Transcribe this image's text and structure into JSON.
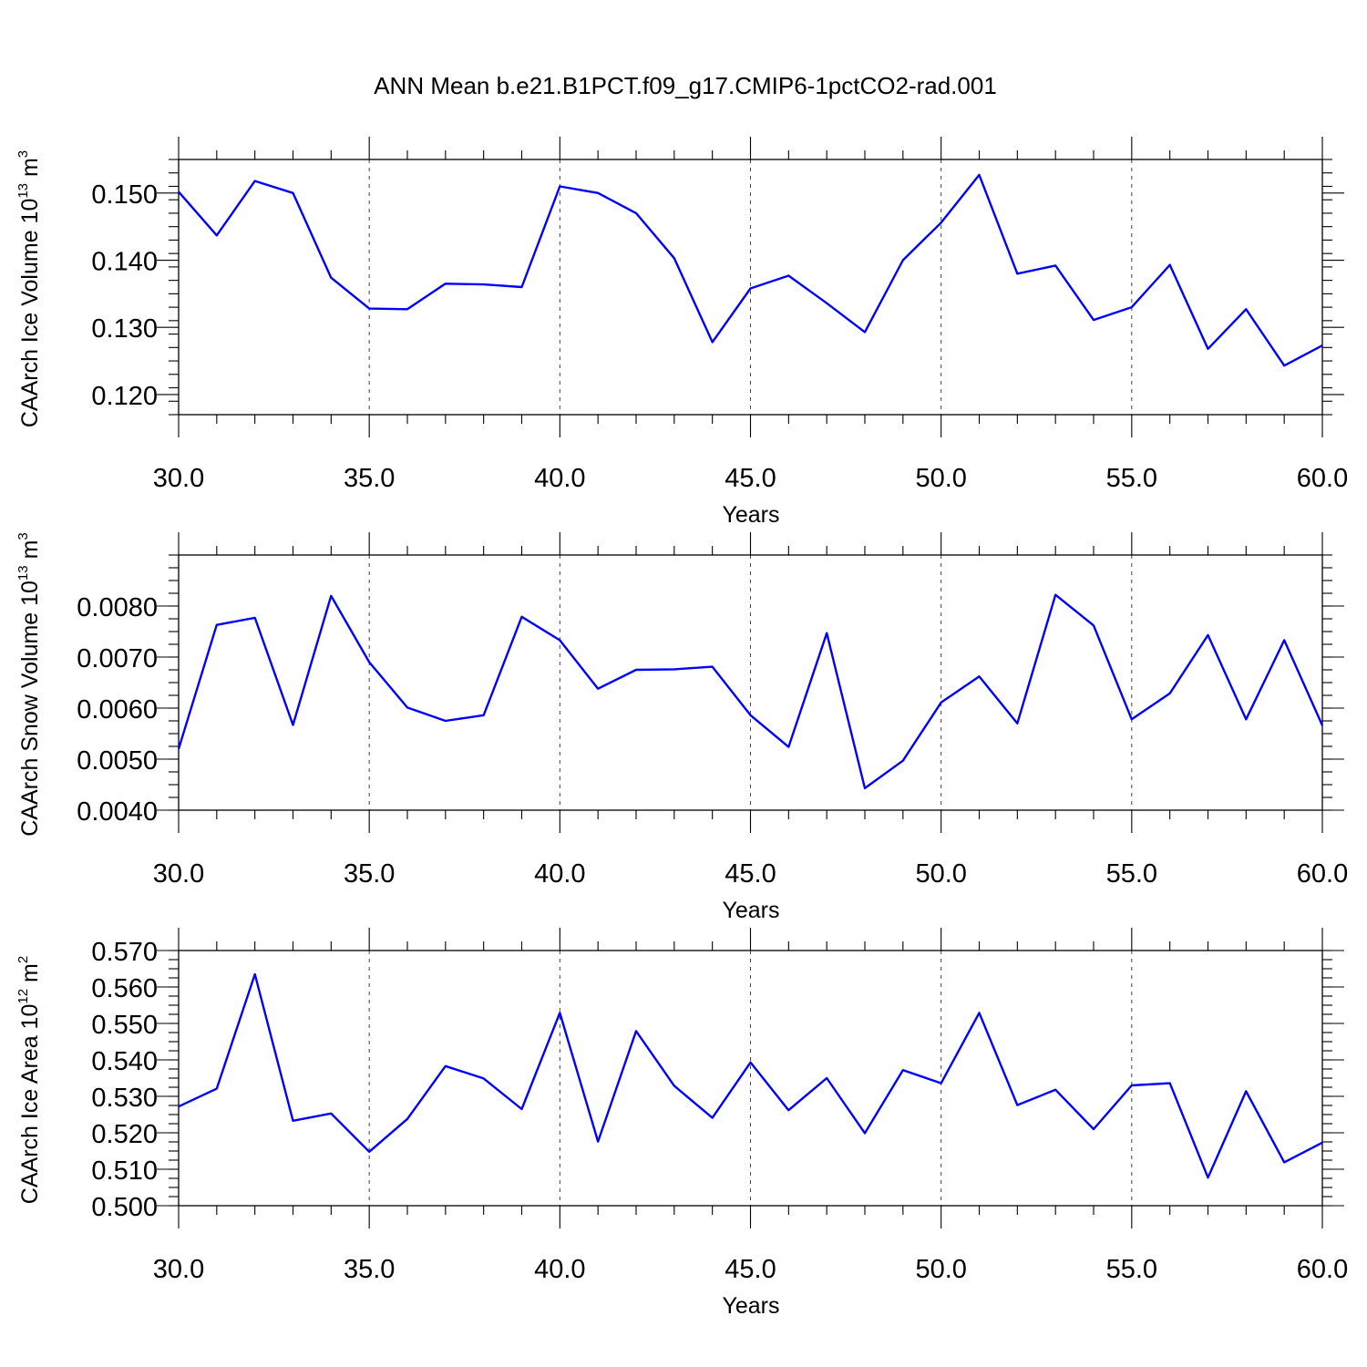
{
  "title": "ANN Mean b.e21.B1PCT.f09_g17.CMIP6-1pctCO2-rad.001",
  "colors": {
    "line": "#0000ff",
    "axis": "#000000",
    "grid": "#555555"
  },
  "chart_data": [
    {
      "type": "line",
      "xlabel": "Years",
      "ylabel": {
        "text": "CAArch Ice Volume 10",
        "exp": "13",
        "unit": " m",
        "unit_exp": "3"
      },
      "x": [
        30,
        31,
        32,
        33,
        34,
        35,
        36,
        37,
        38,
        39,
        40,
        41,
        42,
        43,
        44,
        45,
        46,
        47,
        48,
        49,
        50,
        51,
        52,
        53,
        54,
        55,
        56,
        57,
        58,
        59,
        60
      ],
      "values": [
        0.1502,
        0.1437,
        0.1518,
        0.15,
        0.1374,
        0.1328,
        0.1327,
        0.1365,
        0.1364,
        0.136,
        0.151,
        0.15,
        0.147,
        0.1403,
        0.1278,
        0.1358,
        0.1377,
        0.1336,
        0.1293,
        0.14,
        0.1456,
        0.1527,
        0.138,
        0.1392,
        0.1311,
        0.133,
        0.1393,
        0.1268,
        0.1327,
        0.1243,
        0.1273
      ],
      "xlim": [
        30,
        60
      ],
      "ylim": [
        0.117,
        0.155
      ],
      "xticks": [
        "30.0",
        "35.0",
        "40.0",
        "45.0",
        "50.0",
        "55.0",
        "60.0"
      ],
      "yticks": [
        "0.120",
        "0.130",
        "0.140",
        "0.150"
      ],
      "grid": "vertical dashed at major x ticks"
    },
    {
      "type": "line",
      "xlabel": "Years",
      "ylabel": {
        "text": "CAArch Snow Volume 10",
        "exp": "13",
        "unit": " m",
        "unit_exp": "3"
      },
      "x": [
        30,
        31,
        32,
        33,
        34,
        35,
        36,
        37,
        38,
        39,
        40,
        41,
        42,
        43,
        44,
        45,
        46,
        47,
        48,
        49,
        50,
        51,
        52,
        53,
        54,
        55,
        56,
        57,
        58,
        59,
        60
      ],
      "values": [
        0.0052,
        0.00763,
        0.00777,
        0.00567,
        0.0082,
        0.0069,
        0.00601,
        0.00575,
        0.00586,
        0.00779,
        0.00733,
        0.00638,
        0.00675,
        0.00676,
        0.00681,
        0.00586,
        0.00524,
        0.00747,
        0.00443,
        0.00497,
        0.00611,
        0.00662,
        0.0057,
        0.00822,
        0.00762,
        0.00578,
        0.00629,
        0.00743,
        0.00578,
        0.00733,
        0.00566
      ],
      "xlim": [
        30,
        60
      ],
      "ylim": [
        0.004,
        0.009
      ],
      "xticks": [
        "30.0",
        "35.0",
        "40.0",
        "45.0",
        "50.0",
        "55.0",
        "60.0"
      ],
      "yticks": [
        "0.0040",
        "0.0050",
        "0.0060",
        "0.0070",
        "0.0080"
      ],
      "grid": "vertical dashed at major x ticks"
    },
    {
      "type": "line",
      "xlabel": "Years",
      "ylabel": {
        "text": "CAArch Ice Area 10",
        "exp": "12",
        "unit": " m",
        "unit_exp": "2"
      },
      "x": [
        30,
        31,
        32,
        33,
        34,
        35,
        36,
        37,
        38,
        39,
        40,
        41,
        42,
        43,
        44,
        45,
        46,
        47,
        48,
        49,
        50,
        51,
        52,
        53,
        54,
        55,
        56,
        57,
        58,
        59,
        60
      ],
      "values": [
        0.5272,
        0.5321,
        0.5635,
        0.5233,
        0.5253,
        0.5148,
        0.5238,
        0.5383,
        0.5349,
        0.5265,
        0.5529,
        0.5176,
        0.5479,
        0.5329,
        0.5241,
        0.5393,
        0.5262,
        0.535,
        0.5199,
        0.5372,
        0.5336,
        0.5529,
        0.5276,
        0.5318,
        0.521,
        0.533,
        0.5336,
        0.5077,
        0.5314,
        0.5119,
        0.5173
      ],
      "xlim": [
        30,
        60
      ],
      "ylim": [
        0.5,
        0.57
      ],
      "xticks": [
        "30.0",
        "35.0",
        "40.0",
        "45.0",
        "50.0",
        "55.0",
        "60.0"
      ],
      "yticks": [
        "0.500",
        "0.510",
        "0.520",
        "0.530",
        "0.540",
        "0.550",
        "0.560",
        "0.570"
      ],
      "grid": "vertical dashed at major x ticks"
    }
  ]
}
